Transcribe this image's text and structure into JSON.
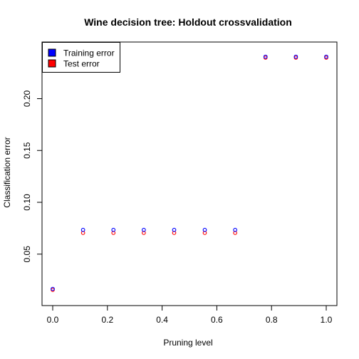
{
  "chart_data": {
    "type": "scatter",
    "title": "Wine decision tree: Holdout crossvalidation",
    "xlabel": "Pruning level",
    "ylabel": "Classification error",
    "xlim": [
      0,
      1
    ],
    "ylim": [
      0.01,
      0.245
    ],
    "x_ticks": [
      "0.0",
      "0.2",
      "0.4",
      "0.6",
      "0.8",
      "1.0"
    ],
    "y_ticks": [
      "0.05",
      "0.10",
      "0.15",
      "0.20"
    ],
    "grid": false,
    "legend_position": "top-left",
    "x": [
      0.0,
      0.111,
      0.222,
      0.333,
      0.444,
      0.556,
      0.667,
      0.778,
      0.889,
      1.0
    ],
    "series": [
      {
        "name": "Training error",
        "color": "#0000ff",
        "values": [
          0.0165,
          0.0734,
          0.0734,
          0.0734,
          0.0734,
          0.0734,
          0.0734,
          0.2405,
          0.2405,
          0.2405
        ]
      },
      {
        "name": "Test error",
        "color": "#ff0000",
        "values": [
          0.0155,
          0.0705,
          0.0705,
          0.0705,
          0.0705,
          0.0705,
          0.0705,
          0.2395,
          0.2395,
          0.2395
        ]
      }
    ]
  }
}
